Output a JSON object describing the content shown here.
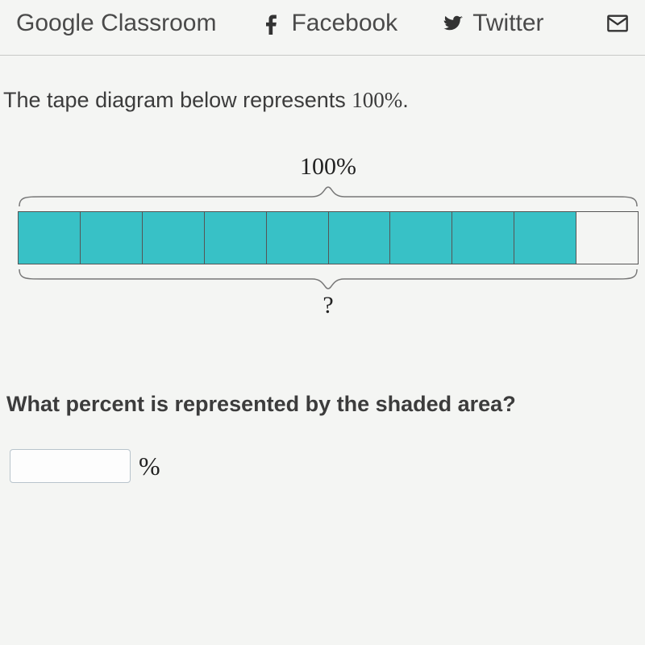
{
  "share": {
    "classroom": "Google Classroom",
    "facebook": "Facebook",
    "twitter": "Twitter"
  },
  "prompt_prefix": "The tape diagram below represents ",
  "prompt_value": "100%",
  "prompt_suffix": ".",
  "diagram": {
    "top_label": "100%",
    "bottom_label": "?",
    "total_cells": 10,
    "shaded_cells": 9,
    "shaded_color": "#38c1c6",
    "unshaded_color": "#f4f5f3",
    "border_color": "#555555",
    "brace_color": "#777777"
  },
  "question": "What percent is represented by the shaded area?",
  "answer": {
    "value": "",
    "unit": "%"
  },
  "colors": {
    "page_bg": "#f4f5f3",
    "text": "#3c3c3c",
    "divider": "#c8c8c6"
  }
}
